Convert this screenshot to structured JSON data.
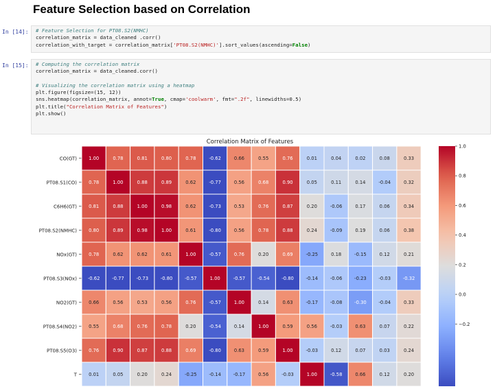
{
  "page": {
    "title": "Feature Selection based on Correlation"
  },
  "cells": [
    {
      "prompt": "In [14]:",
      "lines": [
        [
          {
            "t": "# Feature Selection for PT08.S2(NMHC)",
            "c": "cm"
          }
        ],
        [
          {
            "t": "correlation_matrix = data_cleaned .corr()",
            "c": ""
          }
        ],
        [
          {
            "t": "correlation_with_target = correlation_matrix[",
            "c": ""
          },
          {
            "t": "'PT08.S2(NMHC)'",
            "c": "st"
          },
          {
            "t": "].sort_values(ascending=",
            "c": ""
          },
          {
            "t": "False",
            "c": "kw"
          },
          {
            "t": ")",
            "c": ""
          }
        ]
      ]
    },
    {
      "prompt": "In [15]:",
      "lines": [
        [
          {
            "t": "# Computing the correlation matrix",
            "c": "cm"
          }
        ],
        [
          {
            "t": "correlation_matrix = data_cleaned.corr()",
            "c": ""
          }
        ],
        [
          {
            "t": "",
            "c": ""
          }
        ],
        [
          {
            "t": "# Visualizing the correlation matrix using a heatmap",
            "c": "cm"
          }
        ],
        [
          {
            "t": "plt.figure(figsize=(15, 12))",
            "c": ""
          }
        ],
        [
          {
            "t": "sns.heatmap(correlation_matrix, annot=",
            "c": ""
          },
          {
            "t": "True",
            "c": "kw"
          },
          {
            "t": ", cmap=",
            "c": ""
          },
          {
            "t": "'coolwarm'",
            "c": "st"
          },
          {
            "t": ", fmt=",
            "c": ""
          },
          {
            "t": "\".2f\"",
            "c": "st"
          },
          {
            "t": ", linewidths=0.5)",
            "c": ""
          }
        ],
        [
          {
            "t": "plt.title(",
            "c": ""
          },
          {
            "t": "\"Correlation Matrix of Features\"",
            "c": "st"
          },
          {
            "t": ")",
            "c": ""
          }
        ],
        [
          {
            "t": "plt.show()",
            "c": ""
          }
        ]
      ]
    }
  ],
  "chart_data": {
    "type": "heatmap",
    "title": "Correlation Matrix of Features",
    "colormap": "coolwarm",
    "vmin": -0.62,
    "vmax": 1.0,
    "rows": [
      "CO(GT)",
      "PT08.S1(CO)",
      "C6H6(GT)",
      "PT08.S2(NMHC)",
      "NOx(GT)",
      "PT08.S3(NOx)",
      "NO2(GT)",
      "PT08.S4(NO2)",
      "PT08.S5(O3)",
      "T"
    ],
    "values": [
      [
        1.0,
        0.78,
        0.81,
        0.8,
        0.78,
        -0.62,
        0.66,
        0.55,
        0.76,
        0.01,
        0.04,
        0.02,
        0.08,
        0.33
      ],
      [
        0.78,
        1.0,
        0.88,
        0.89,
        0.62,
        -0.77,
        0.56,
        0.68,
        0.9,
        0.05,
        0.11,
        0.14,
        -0.04,
        0.32
      ],
      [
        0.81,
        0.88,
        1.0,
        0.98,
        0.62,
        -0.73,
        0.53,
        0.76,
        0.87,
        0.2,
        -0.06,
        0.17,
        0.06,
        0.34
      ],
      [
        0.8,
        0.89,
        0.98,
        1.0,
        0.61,
        -0.8,
        0.56,
        0.78,
        0.88,
        0.24,
        -0.09,
        0.19,
        0.06,
        0.38
      ],
      [
        0.78,
        0.62,
        0.62,
        0.61,
        1.0,
        -0.57,
        0.76,
        0.2,
        0.69,
        -0.25,
        0.18,
        -0.15,
        0.12,
        0.21
      ],
      [
        -0.62,
        -0.77,
        -0.73,
        -0.8,
        -0.57,
        1.0,
        -0.57,
        -0.54,
        -0.8,
        -0.14,
        -0.06,
        -0.23,
        -0.03,
        -0.32
      ],
      [
        0.66,
        0.56,
        0.53,
        0.56,
        0.76,
        -0.57,
        1.0,
        0.14,
        0.63,
        -0.17,
        -0.08,
        -0.3,
        -0.04,
        0.33
      ],
      [
        0.55,
        0.68,
        0.76,
        0.78,
        0.2,
        -0.54,
        0.14,
        1.0,
        0.59,
        0.56,
        -0.03,
        0.63,
        0.07,
        0.22
      ],
      [
        0.76,
        0.9,
        0.87,
        0.88,
        0.69,
        -0.8,
        0.63,
        0.59,
        1.0,
        -0.03,
        0.12,
        0.07,
        0.03,
        0.24
      ],
      [
        0.01,
        0.05,
        0.2,
        0.24,
        -0.25,
        -0.14,
        -0.17,
        0.56,
        -0.03,
        1.0,
        -0.58,
        0.66,
        0.12,
        0.2
      ]
    ],
    "colorbar_ticks": [
      "1.0",
      "0.8",
      "0.6",
      "0.4",
      "0.2",
      "0.0",
      "−0.2"
    ],
    "colorbar_values": [
      1.0,
      0.8,
      0.6,
      0.4,
      0.2,
      0.0,
      -0.2
    ]
  }
}
